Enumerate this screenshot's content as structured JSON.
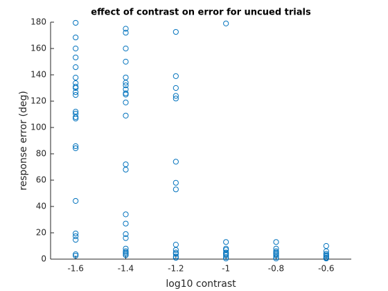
{
  "chart_data": {
    "type": "scatter",
    "title": "effect of contrast on error for uncued trials",
    "x_label": "log10 contrast",
    "y_label": "response error (deg)",
    "xlim": [
      -1.7,
      -0.5
    ],
    "ylim": [
      0,
      180
    ],
    "xticks": [
      -1.6,
      -1.4,
      -1.2,
      -1,
      -0.8,
      -0.6
    ],
    "yticks": [
      0,
      20,
      40,
      60,
      80,
      100,
      120,
      140,
      160,
      180
    ],
    "series": [
      {
        "color": "#0072bd",
        "x": [
          -1.6,
          -1.6,
          -1.6,
          -1.6,
          -1.6,
          -1.6,
          -1.6,
          -1.6,
          -1.6,
          -1.6,
          -1.6,
          -1.6,
          -1.6,
          -1.6,
          -1.6,
          -1.6,
          -1.6,
          -1.6,
          -1.6,
          -1.6,
          -1.6,
          -1.6,
          -1.6,
          -1.4,
          -1.4,
          -1.4,
          -1.4,
          -1.4,
          -1.4,
          -1.4,
          -1.4,
          -1.4,
          -1.4,
          -1.4,
          -1.4,
          -1.4,
          -1.4,
          -1.4,
          -1.4,
          -1.4,
          -1.4,
          -1.4,
          -1.4,
          -1.4,
          -1.4,
          -1.4,
          -1.2,
          -1.2,
          -1.2,
          -1.2,
          -1.2,
          -1.2,
          -1.2,
          -1.2,
          -1.2,
          -1.2,
          -1.2,
          -1.2,
          -1.2,
          -1.2,
          -1,
          -1,
          -1,
          -1,
          -1,
          -1,
          -1,
          -1,
          -1,
          -0.8,
          -0.8,
          -0.8,
          -0.8,
          -0.8,
          -0.8,
          -0.8,
          -0.8,
          -0.6,
          -0.6,
          -0.6,
          -0.6,
          -0.6,
          -0.6,
          -0.6
        ],
        "y": [
          179.5,
          168.4,
          160,
          153.2,
          145.8,
          137.9,
          133.7,
          131,
          130,
          126.8,
          124.7,
          112,
          110.5,
          107.9,
          106.8,
          85.8,
          84.2,
          44.2,
          19.5,
          17.4,
          14.7,
          3.7,
          2.6,
          175,
          172,
          160,
          150,
          138,
          134,
          132,
          129,
          126,
          125,
          119,
          109,
          72,
          68,
          34,
          27,
          19,
          16,
          8,
          6,
          5,
          4,
          3,
          172.6,
          139,
          130,
          124,
          122,
          74,
          58,
          53,
          11,
          7,
          5,
          4,
          2,
          1,
          179,
          13,
          8,
          7,
          5,
          4,
          3,
          1.5,
          0.5,
          13,
          8,
          6,
          5,
          4,
          3,
          1.5,
          0.5,
          10,
          6,
          4,
          3,
          2,
          1,
          0.5
        ]
      }
    ]
  }
}
